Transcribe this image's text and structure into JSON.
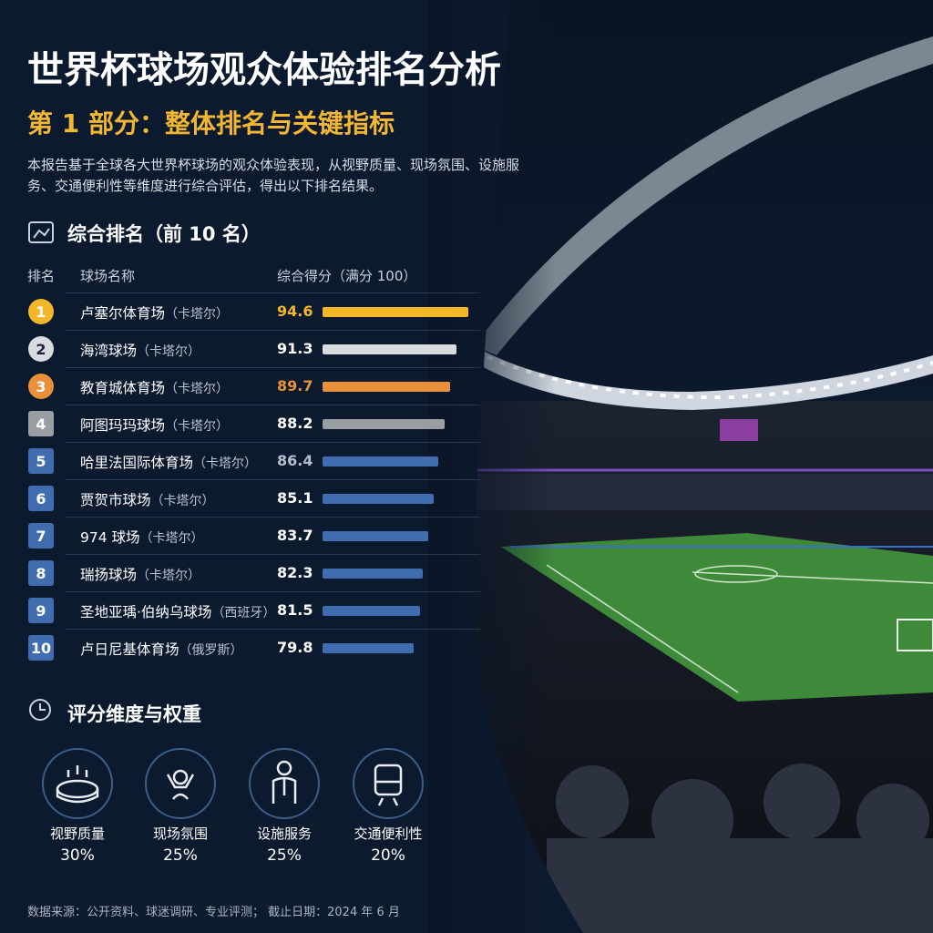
{
  "header": {
    "title": "世界杯球场观众体验排名分析",
    "subtitle": "第 1 部分：整体排名与关键指标",
    "intro": "本报告基于全球各大世界杯球场的观众体验表现，从视野质量、现场氛围、设施服务、交通便利性等维度进行综合评估，得出以下排名结果。"
  },
  "ranking": {
    "title": "综合排名（前 10 名）",
    "columns": [
      "排名",
      "球场名称",
      "综合得分（满分 100）"
    ],
    "xlim": [
      55,
      100
    ],
    "rows": [
      {
        "rank": 1,
        "name": "卢塞尔体育场",
        "country": "（卡塔尔）",
        "score": 94.6,
        "color": "#f4b72a",
        "text_color": "#f4b72a",
        "shape": "circle"
      },
      {
        "rank": 2,
        "name": "海湾球场",
        "country": "（卡塔尔）",
        "score": 91.3,
        "color": "#d9dcdf",
        "text_color": "#ffffff",
        "shape": "circle"
      },
      {
        "rank": 3,
        "name": "教育城体育场",
        "country": "（卡塔尔）",
        "score": 89.7,
        "color": "#e8913a",
        "text_color": "#e8913a",
        "shape": "circle"
      },
      {
        "rank": 4,
        "name": "阿图玛玛球场",
        "country": "（卡塔尔）",
        "score": 88.2,
        "color": "#9a9da2",
        "text_color": "#ffffff",
        "shape": "square"
      },
      {
        "rank": 5,
        "name": "哈里法国际体育场",
        "country": "（卡塔尔）",
        "score": 86.4,
        "color": "#3f6db0",
        "text_color": "#b6bfcb",
        "shape": "square"
      },
      {
        "rank": 6,
        "name": "贾贺市球场",
        "country": "（卡塔尔）",
        "score": 85.1,
        "color": "#3f6db0",
        "text_color": "#ffffff",
        "shape": "square"
      },
      {
        "rank": 7,
        "name": "974 球场",
        "country": "（卡塔尔）",
        "score": 83.7,
        "color": "#3f6db0",
        "text_color": "#ffffff",
        "shape": "square"
      },
      {
        "rank": 8,
        "name": "瑞扬球场",
        "country": "（卡塔尔）",
        "score": 82.3,
        "color": "#3f6db0",
        "text_color": "#ffffff",
        "shape": "square"
      },
      {
        "rank": 9,
        "name": "圣地亚瑀·伯纳乌球场",
        "country": "（西班牙）",
        "score": 81.5,
        "color": "#3f6db0",
        "text_color": "#ffffff",
        "shape": "square"
      },
      {
        "rank": 10,
        "name": "卢日尼基体育场",
        "country": "（俄罗斯）",
        "score": 79.8,
        "color": "#3f6db0",
        "text_color": "#ffffff",
        "shape": "square"
      }
    ]
  },
  "dimensions": {
    "title": "评分维度与权重",
    "items": [
      {
        "label": "视野质量",
        "weight": "30%"
      },
      {
        "label": "现场氛围",
        "weight": "25%"
      },
      {
        "label": "设施服务",
        "weight": "25%"
      },
      {
        "label": "交通便利性",
        "weight": "20%"
      }
    ]
  },
  "footer": "数据来源：公开资料、球迷调研、专业评测；  截止日期：2024 年 6 月"
}
